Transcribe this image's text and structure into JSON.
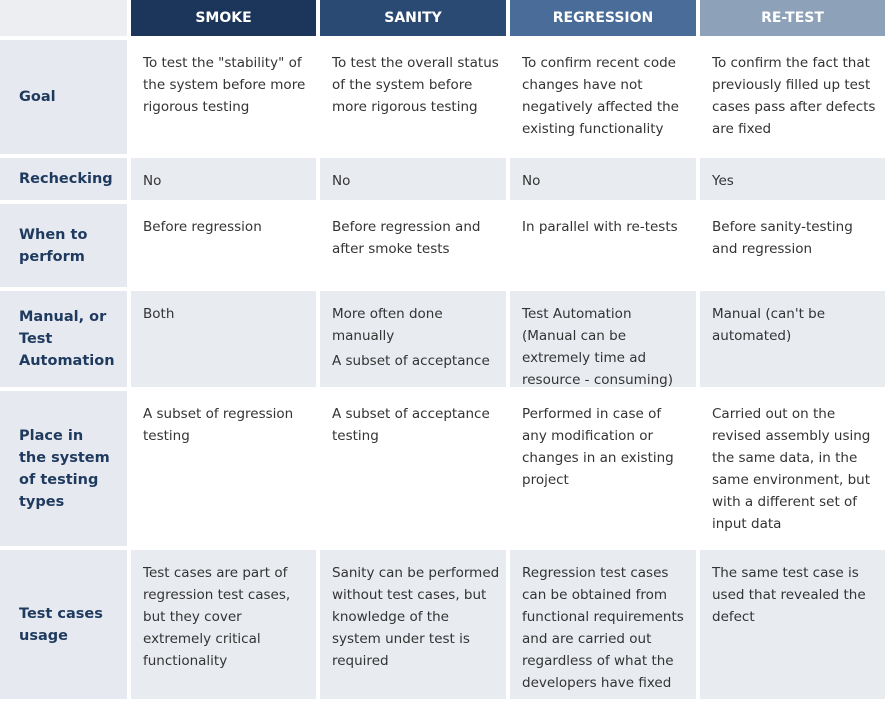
{
  "table": {
    "columns": [
      "SMOKE",
      "SANITY",
      "REGRESSION",
      "RE-TEST"
    ],
    "rows": [
      {
        "label": "Goal",
        "cells": [
          "To test the \"stability\" of the system before more rigorous testing",
          "To test the overall status of the system  before more rigorous testing",
          "To confirm recent code changes have not negatively affected the existing functionality",
          "To confirm the fact that previously filled up test cases pass after defects are fixed"
        ]
      },
      {
        "label": "Rechecking",
        "cells": [
          "No",
          "No",
          "No",
          "Yes"
        ]
      },
      {
        "label": "When to perform",
        "cells": [
          "Before regression",
          "Before regression and after smoke tests",
          "In parallel with re-tests",
          "Before sanity-testing and regression"
        ]
      },
      {
        "label": "Manual, or Test Automation",
        "cells": [
          "Both",
          [
            "More often done manually",
            "A subset of acceptance"
          ],
          "Test Automation (Manual can be extremely time ad resource - consuming)",
          "Manual (can't be automated)"
        ]
      },
      {
        "label": "Place in the system of testing types",
        "cells": [
          "A subset of regression testing",
          "A subset of acceptance testing",
          "Performed in case of any modification or changes in an existing project",
          "Carried out on the revised assembly using the same data, in the same environment, but with a different set of input data"
        ]
      },
      {
        "label": "Test cases usage",
        "cells": [
          "Test cases are part of regression test cases, but they cover extremely critical functionality",
          "Sanity can be performed without test cases, but knowledge of the system under test is required",
          "Regression test cases can be obtained from functional requirements and are carried out regardless of what the developers have fixed",
          "The same test case is used that revealed the defect"
        ]
      }
    ]
  }
}
